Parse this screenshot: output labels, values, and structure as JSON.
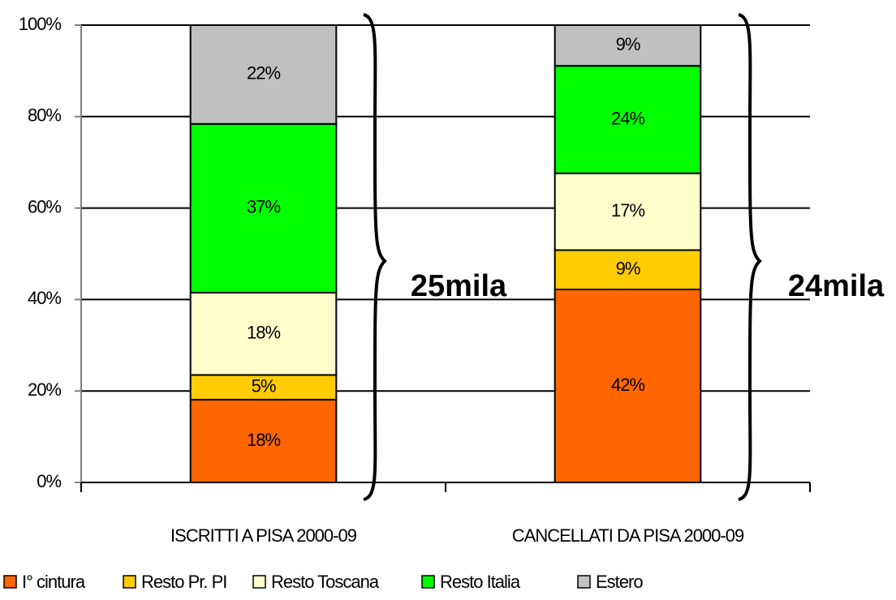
{
  "chart_data": {
    "type": "stacked_bar",
    "categories": [
      "ISCRITTI A PISA 2000-09",
      "CANCELLATI DA PISA 2000-09"
    ],
    "series": [
      {
        "name": "I° cintura",
        "color": "#ff6600",
        "values": [
          18.1,
          42.2
        ],
        "value_labels": [
          "18%",
          "42%"
        ]
      },
      {
        "name": "Resto Pr. PI",
        "color": "#ffcc00",
        "values": [
          5.4,
          8.6
        ],
        "value_labels": [
          "5%",
          "9%"
        ]
      },
      {
        "name": "Resto Toscana",
        "color": "#ffffcc",
        "values": [
          18.0,
          16.8
        ],
        "value_labels": [
          "18%",
          "17%"
        ]
      },
      {
        "name": "Resto Italia",
        "color": "#00ff00",
        "values": [
          36.9,
          23.5
        ],
        "value_labels": [
          "37%",
          "24%"
        ]
      },
      {
        "name": "Estero",
        "color": "#c0c0c0",
        "values": [
          21.6,
          8.9
        ],
        "value_labels": [
          "22%",
          "9%"
        ]
      }
    ],
    "ylim": [
      0,
      100
    ],
    "yticks": [
      {
        "value": 0,
        "label": "0%"
      },
      {
        "value": 20,
        "label": "20%"
      },
      {
        "value": 40,
        "label": "40%"
      },
      {
        "value": 60,
        "label": "60%"
      },
      {
        "value": 80,
        "label": "80%"
      },
      {
        "value": 100,
        "label": "100%"
      }
    ],
    "grid": true,
    "annotations": [
      "25mila",
      "24mila"
    ],
    "legend": "bottom"
  }
}
